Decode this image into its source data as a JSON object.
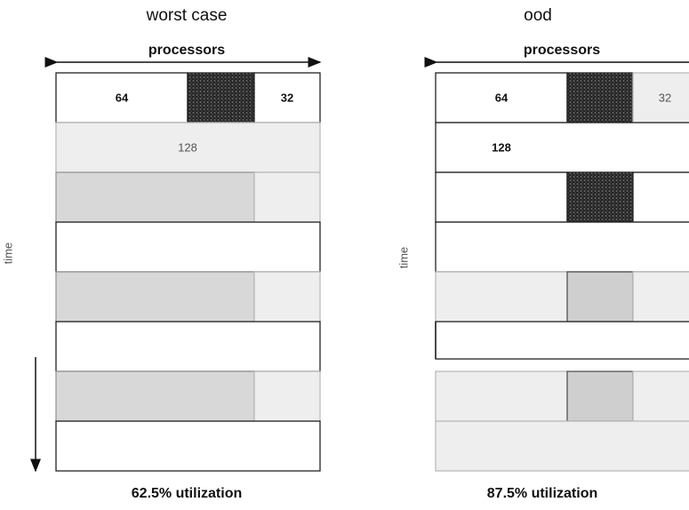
{
  "panels": [
    {
      "title": "worst case",
      "axis_label": "processors",
      "time_label": "time",
      "cells": [
        "64",
        "32",
        "128"
      ],
      "caption": "62.5% utilization"
    },
    {
      "title": "ood",
      "axis_label": "processors",
      "time_label": "time",
      "cells": [
        "64",
        "32",
        "128"
      ],
      "caption": "87.5% utilization"
    }
  ]
}
